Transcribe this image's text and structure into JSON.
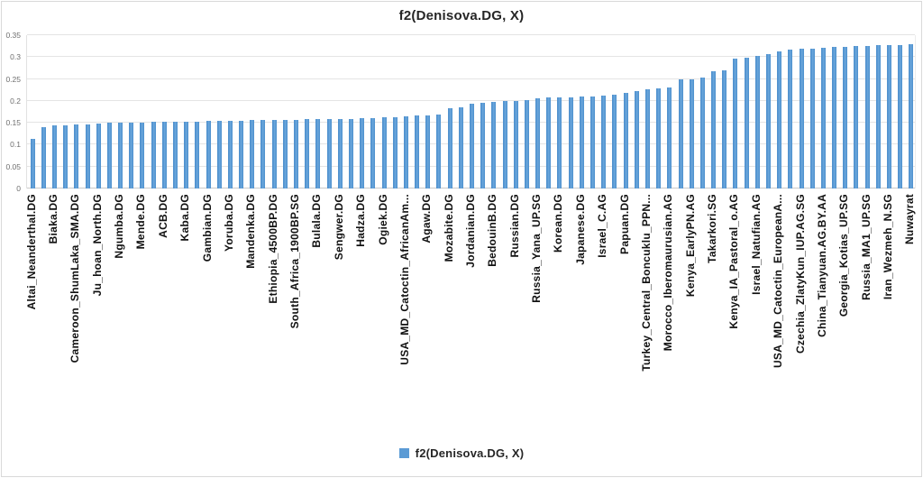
{
  "title": "f2(Denisova.DG, X)",
  "legend": {
    "label": "f2(Denisova.DG, X)",
    "marker_color": "#5b9bd5"
  },
  "colors": {
    "bar": "#5b9bd5",
    "gridline": "#e4e4e4",
    "axis_text": "#6e6e6e",
    "category_text": "#111111",
    "title_text": "#262626",
    "border": "#d9d9d9"
  },
  "chart_data": {
    "type": "bar",
    "title": "f2(Denisova.DG, X)",
    "grid": "horizontal",
    "legend_position": "bottom",
    "ylim": [
      0,
      0.35
    ],
    "yticks": [
      0,
      0.05,
      0.1,
      0.15,
      0.2,
      0.25,
      0.3,
      0.35
    ],
    "ytick_labels": [
      "0",
      "0.05",
      "0.1",
      "0.15",
      "0.2",
      "0.25",
      "0.3",
      "0.35"
    ],
    "label_every": 2,
    "categories": [
      "Altai_Neanderthal.DG",
      "Biaka.DG",
      "Cameroon_ShumLaka_SMA.DG",
      "Ju_hoan_North.DG",
      "Ngumba.DG",
      "Mende.DG",
      "ACB.DG",
      "Kaba.DG",
      "Gambian.DG",
      "Yoruba.DG",
      "Mandenka.DG",
      "Ethiopia_4500BP.DG",
      "South_Africa_1900BP.SG",
      "Bulala.DG",
      "Sengwer.DG",
      "Hadza.DG",
      "Ogiek.DG",
      "USA_MD_Catoctin_AfricanAm...",
      "Agaw.DG",
      "Mozabite.DG",
      "Jordanian.DG",
      "BedouinB.DG",
      "Russian.DG",
      "Russia_Yana_UP.SG",
      "Korean.DG",
      "Japanese.DG",
      "Israel_C.AG",
      "Papuan.DG",
      "Turkey_Central_Boncuklu_PPN...",
      "Morocco_Iberomaurusian.AG",
      "Kenya_EarlyPN.AG",
      "Takarkori.SG",
      "Kenya_IA_Pastoral_o.AG",
      "Israel_Natufian.AG",
      "USA_MD_Catoctin_EuropeanA...",
      "Czechia_ZlatyKun_IUP.AG.SG",
      "China_Tianyuan.AG.BY.AA",
      "Georgia_Kotias_UP.SG",
      "Russia_MA1_UP.SG",
      "Iran_Wezmeh_N.SG",
      "Nuwayrat"
    ],
    "series": [
      {
        "name": "f2(Denisova.DG, X)",
        "values": [
          0.114,
          0.14,
          0.144,
          0.145,
          0.146,
          0.146,
          0.149,
          0.15,
          0.15,
          0.151,
          0.151,
          0.152,
          0.152,
          0.153,
          0.153,
          0.153,
          0.154,
          0.154,
          0.155,
          0.155,
          0.156,
          0.156,
          0.157,
          0.157,
          0.157,
          0.158,
          0.158,
          0.158,
          0.159,
          0.159,
          0.16,
          0.161,
          0.162,
          0.163,
          0.165,
          0.166,
          0.167,
          0.168,
          0.184,
          0.186,
          0.193,
          0.196,
          0.198,
          0.199,
          0.2,
          0.202,
          0.205,
          0.208,
          0.209,
          0.209,
          0.21,
          0.21,
          0.212,
          0.215,
          0.218,
          0.222,
          0.226,
          0.228,
          0.23,
          0.249,
          0.25,
          0.254,
          0.267,
          0.27,
          0.297,
          0.299,
          0.302,
          0.307,
          0.313,
          0.317,
          0.319,
          0.32,
          0.321,
          0.323,
          0.324,
          0.325,
          0.326,
          0.328,
          0.328,
          0.328,
          0.329
        ]
      }
    ]
  }
}
